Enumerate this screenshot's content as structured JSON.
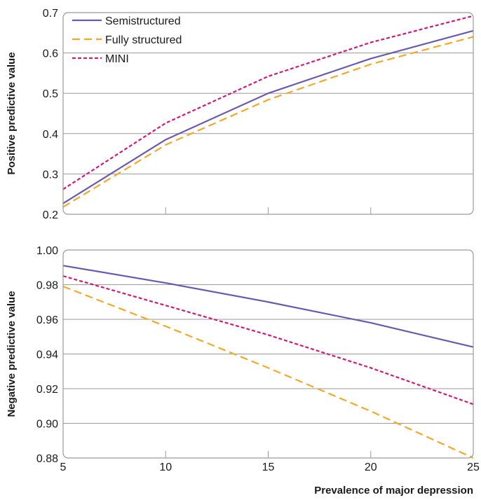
{
  "colors": {
    "semistructured": "#6a5aad",
    "fully_structured": "#f4a82a",
    "mini": "#d0197a",
    "grid": "#9a9a9a",
    "frame": "#9a9a9a"
  },
  "xlabel": "Prevalence of major depression",
  "chart_data": [
    {
      "type": "line",
      "ylabel": "Positive predictive value",
      "x": [
        5,
        10,
        15,
        20,
        25
      ],
      "xlim": [
        5,
        25
      ],
      "ylim": [
        0.2,
        0.7
      ],
      "x_ticks": [
        "5",
        "10",
        "15",
        "20",
        "25"
      ],
      "y_ticks": [
        "0.2",
        "0.3",
        "0.4",
        "0.5",
        "0.6",
        "0.7"
      ],
      "x_tick_labels_shown": false,
      "grid": "horizontal",
      "legend": "top-left",
      "series": [
        {
          "name": "Semistructured",
          "style": "solid",
          "values": [
            0.227,
            0.385,
            0.5,
            0.586,
            0.655
          ]
        },
        {
          "name": "Fully structured",
          "style": "dashed",
          "values": [
            0.218,
            0.372,
            0.484,
            0.572,
            0.64
          ]
        },
        {
          "name": "MINI",
          "style": "dotted",
          "values": [
            0.262,
            0.426,
            0.542,
            0.626,
            0.692
          ]
        }
      ]
    },
    {
      "type": "line",
      "ylabel": "Negative predictive value",
      "x": [
        5,
        10,
        15,
        20,
        25
      ],
      "xlim": [
        5,
        25
      ],
      "ylim": [
        0.88,
        1.0
      ],
      "x_ticks": [
        "5",
        "10",
        "15",
        "20",
        "25"
      ],
      "y_ticks": [
        "0.88",
        "0.90",
        "0.92",
        "0.94",
        "0.96",
        "0.98",
        "1.00"
      ],
      "x_tick_labels_shown": true,
      "grid": "horizontal",
      "legend": "none",
      "series": [
        {
          "name": "Semistructured",
          "style": "solid",
          "values": [
            0.991,
            0.981,
            0.97,
            0.958,
            0.944
          ]
        },
        {
          "name": "Fully structured",
          "style": "dashed",
          "values": [
            0.979,
            0.956,
            0.932,
            0.907,
            0.88
          ]
        },
        {
          "name": "MINI",
          "style": "dotted",
          "values": [
            0.985,
            0.968,
            0.951,
            0.932,
            0.911
          ]
        }
      ]
    }
  ]
}
